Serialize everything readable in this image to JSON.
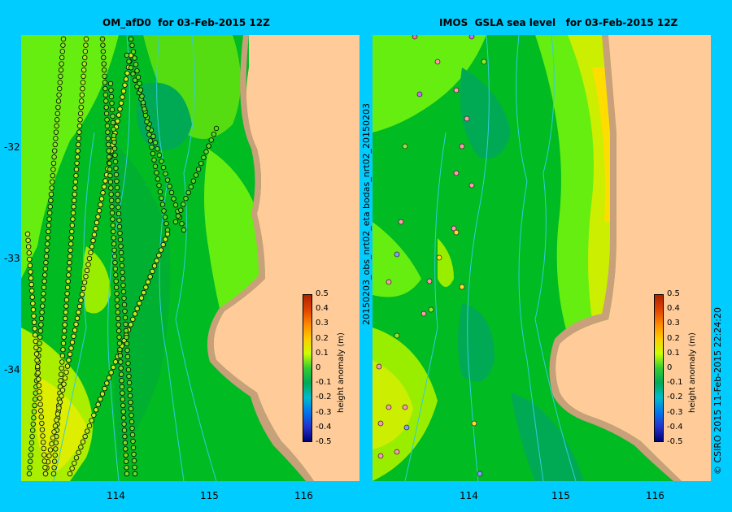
{
  "left_panel": {
    "title": "OM_afD0  for 03-Feb-2015 12Z",
    "y_ticks": [
      "-32",
      "-33",
      "-34"
    ],
    "x_ticks": [
      "114",
      "115",
      "116"
    ]
  },
  "right_panel": {
    "title": "IMOS  GSLA sea level   for 03-Feb-2015 12Z",
    "x_ticks": [
      "114",
      "115",
      "116"
    ],
    "side_label": "20150203_obs_nrt02_eta       bodas_nrt02_20150203"
  },
  "colorbar": {
    "title": "height anomaly (m)",
    "labels": [
      "0.5",
      "0.4",
      "0.3",
      "0.2",
      "0.1",
      "0",
      "-0.1",
      "-0.2",
      "-0.3",
      "-0.4",
      "-0.5"
    ],
    "colors": [
      "#b02200",
      "#e04400",
      "#ff8800",
      "#ffcc00",
      "#ccff00",
      "#33cc33",
      "#00aa55",
      "#00bbcc",
      "#0077ee",
      "#2233cc",
      "#000077"
    ]
  },
  "copyright": "© CSIRO 2015   11-Feb-2015 22:24:20",
  "colors": {
    "background": "#00ccff",
    "land": "#ffcc99",
    "shelf": "#c8a07a",
    "bathymetry": "#33ccdd"
  }
}
